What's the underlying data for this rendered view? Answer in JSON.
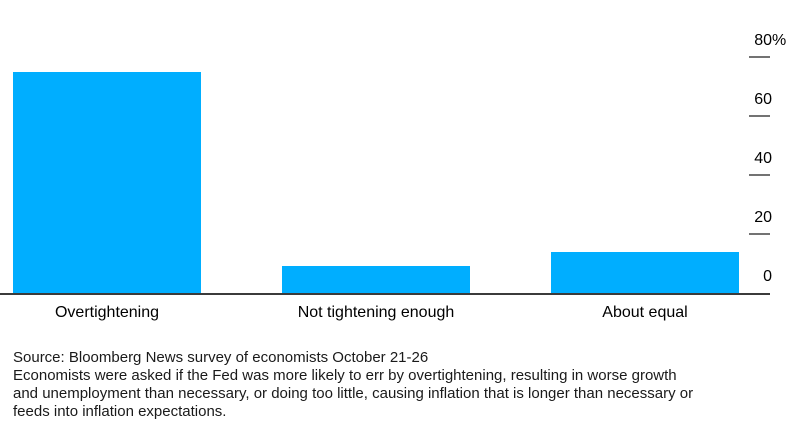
{
  "chart_data": {
    "type": "bar",
    "title": "",
    "xlabel": "",
    "ylabel": "",
    "categories": [
      "Overtightening",
      "Not tightening enough",
      "About equal"
    ],
    "values": [
      75,
      9,
      14
    ],
    "unit": "%",
    "ylim": [
      0,
      80
    ],
    "yticks": [
      {
        "value": 80,
        "label": "80%"
      },
      {
        "value": 60,
        "label": "60"
      },
      {
        "value": 40,
        "label": "40"
      },
      {
        "value": 20,
        "label": "20"
      },
      {
        "value": 0,
        "label": "0"
      }
    ],
    "bar_color": "#00AEFF",
    "axis_position": "right",
    "grid": false,
    "legend": null
  },
  "footer": {
    "source_line": "Source: Bloomberg News survey of economists October 21-26",
    "note_lines": [
      "Economists were asked if the Fed was more likely to err by overtightening, resulting in worse growth",
      "and unemployment than necessary, or doing too little, causing inflation that is longer than necessary or",
      "feeds into inflation expectations."
    ]
  },
  "colors": {
    "bar": "#00AEFF",
    "axis_line": "#3b3b3b",
    "tick_mark": "#737373",
    "label_text": "#000000",
    "note_text": "#1a1a1a",
    "background": "#ffffff"
  }
}
